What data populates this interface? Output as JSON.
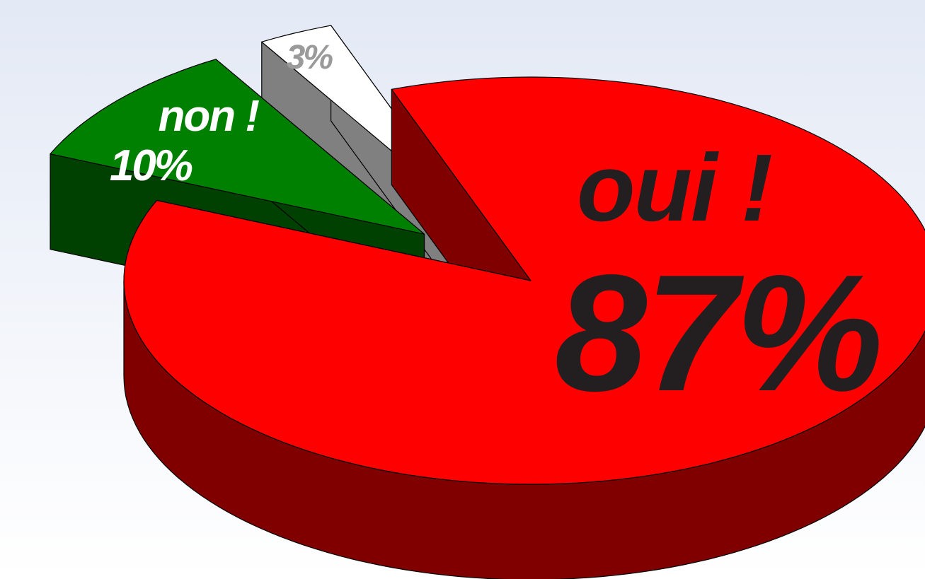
{
  "chart_data": {
    "type": "pie",
    "categories": [
      "oui !",
      "non !",
      null
    ],
    "values": [
      87,
      10,
      3
    ],
    "value_labels": [
      "87%",
      "10%",
      "3%"
    ],
    "colors": [
      "#ff0000",
      "#008000",
      "#ffffff"
    ],
    "three_d": true
  }
}
